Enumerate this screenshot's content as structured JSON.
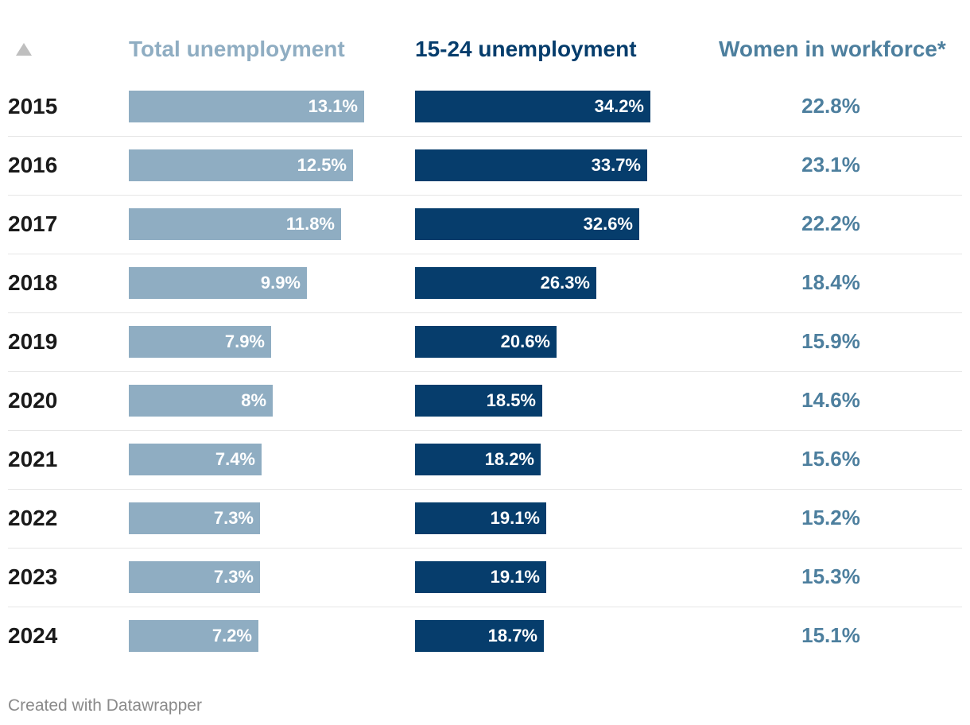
{
  "header": {
    "col_total": "Total unemployment",
    "col_youth": "15-24 unemployment",
    "col_women": "Women in workforce*"
  },
  "colors": {
    "total": "#8fadc2",
    "youth": "#063d6c",
    "women": "#4d7f9e",
    "header_total": "#8fadc2",
    "header_youth": "#063d6c",
    "header_women": "#4d7f9e"
  },
  "icons": {
    "sort": "sort-ascending-icon"
  },
  "chart_data": {
    "type": "table",
    "columns": [
      "",
      "Total unemployment",
      "15-24 unemployment",
      "Women in workforce*"
    ],
    "rows": [
      {
        "year": "2015",
        "total": 13.1,
        "total_label": "13.1%",
        "youth": 34.2,
        "youth_label": "34.2%",
        "women_label": "22.8%"
      },
      {
        "year": "2016",
        "total": 12.5,
        "total_label": "12.5%",
        "youth": 33.7,
        "youth_label": "33.7%",
        "women_label": "23.1%"
      },
      {
        "year": "2017",
        "total": 11.8,
        "total_label": "11.8%",
        "youth": 32.6,
        "youth_label": "32.6%",
        "women_label": "22.2%"
      },
      {
        "year": "2018",
        "total": 9.9,
        "total_label": "9.9%",
        "youth": 26.3,
        "youth_label": "26.3%",
        "women_label": "18.4%"
      },
      {
        "year": "2019",
        "total": 7.9,
        "total_label": "7.9%",
        "youth": 20.6,
        "youth_label": "20.6%",
        "women_label": "15.9%"
      },
      {
        "year": "2020",
        "total": 8,
        "total_label": "8%",
        "youth": 18.5,
        "youth_label": "18.5%",
        "women_label": "14.6%"
      },
      {
        "year": "2021",
        "total": 7.4,
        "total_label": "7.4%",
        "youth": 18.2,
        "youth_label": "18.2%",
        "women_label": "15.6%"
      },
      {
        "year": "2022",
        "total": 7.3,
        "total_label": "7.3%",
        "youth": 19.1,
        "youth_label": "19.1%",
        "women_label": "15.2%"
      },
      {
        "year": "2023",
        "total": 7.3,
        "total_label": "7.3%",
        "youth": 19.1,
        "youth_label": "19.1%",
        "women_label": "15.3%"
      },
      {
        "year": "2024",
        "total": 7.2,
        "total_label": "7.2%",
        "youth": 18.7,
        "youth_label": "18.7%",
        "women_label": "15.1%"
      }
    ]
  },
  "footer": {
    "credit": "Created with Datawrapper"
  }
}
